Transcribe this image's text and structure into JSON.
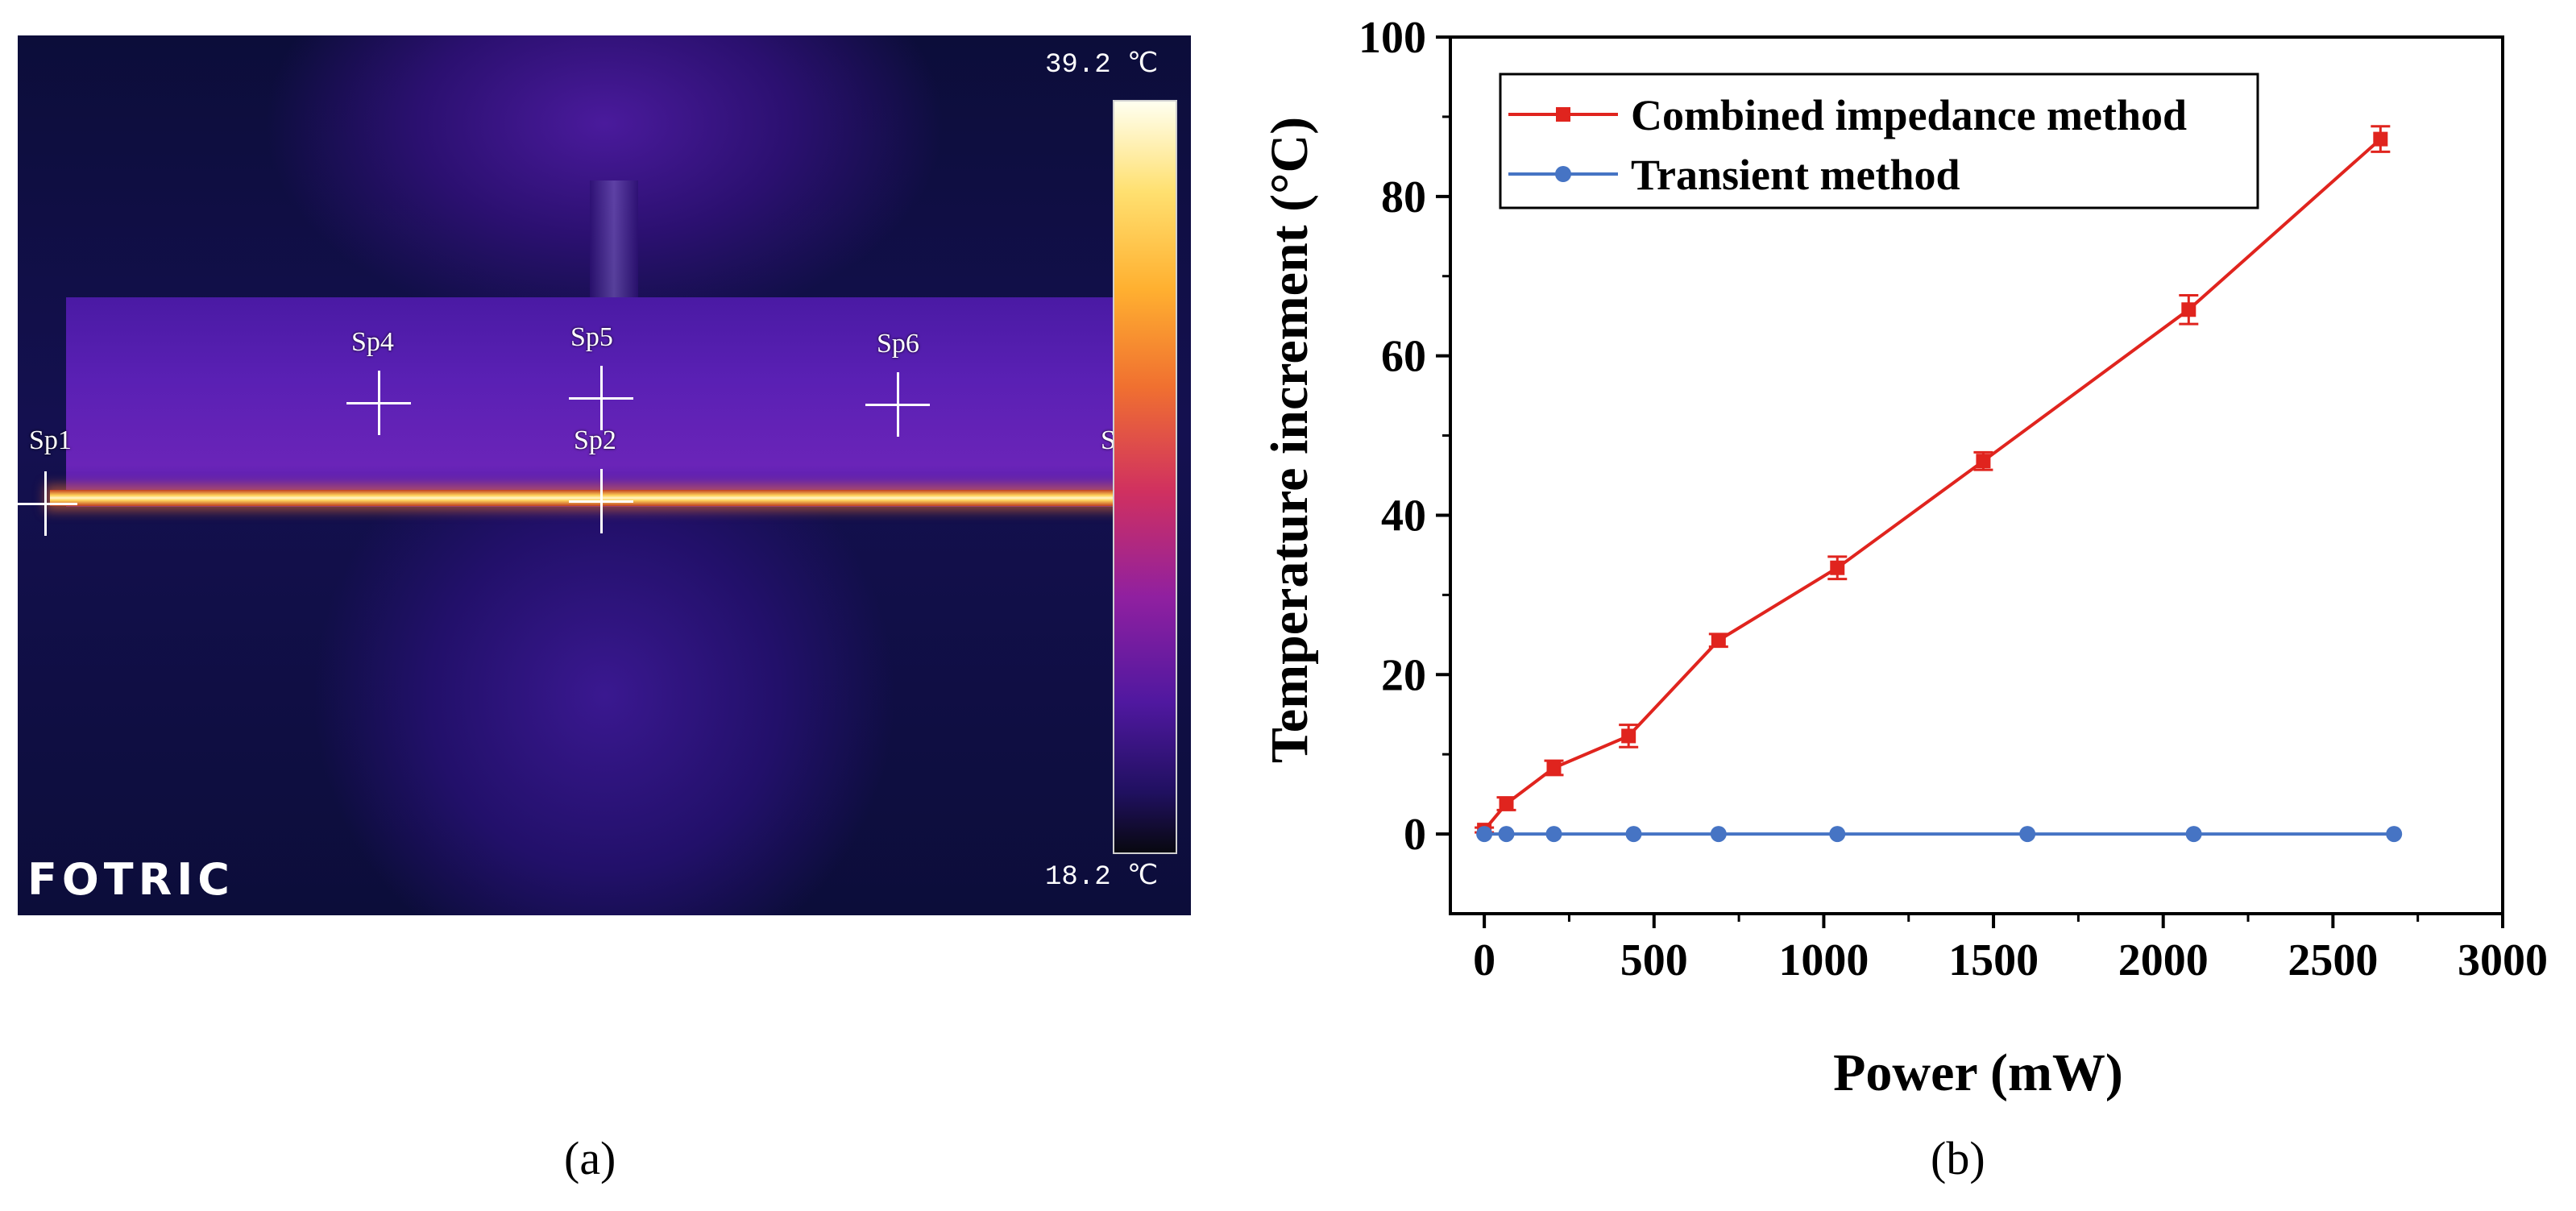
{
  "panel_a": {
    "caption": "(a)",
    "scale_max": "39.2 ℃",
    "scale_min": "18.2 ℃",
    "brand": "FOTRIC",
    "spots": [
      "Sp1",
      "Sp2",
      "Sp4",
      "Sp5",
      "Sp6",
      "S"
    ]
  },
  "panel_b": {
    "caption": "(b)"
  },
  "chart_data": {
    "type": "line",
    "title": "",
    "xlabel": "Power (mW)",
    "ylabel": "Temperature increment (°C)",
    "xlim": [
      -100,
      3000
    ],
    "ylim": [
      -10,
      100
    ],
    "xticks": [
      0,
      500,
      1000,
      1500,
      2000,
      2500,
      3000
    ],
    "yticks": [
      0,
      20,
      40,
      60,
      80,
      100
    ],
    "grid": false,
    "legend_position": "top-left",
    "series": [
      {
        "name": "Combined impedance method",
        "color": "#e0241e",
        "marker": "square",
        "x": [
          0,
          65,
          205,
          425,
          690,
          1040,
          1470,
          2075,
          2640
        ],
        "y": [
          0.5,
          3.8,
          8.3,
          12.3,
          24.3,
          33.4,
          46.8,
          65.8,
          87.2
        ],
        "error": [
          0.3,
          0.8,
          0.9,
          1.4,
          0.8,
          1.4,
          1.1,
          1.8,
          1.6
        ]
      },
      {
        "name": "Transient method",
        "color": "#4674c4",
        "marker": "circle",
        "x": [
          0,
          65,
          205,
          440,
          690,
          1040,
          1600,
          2090,
          2680
        ],
        "y": [
          0,
          0,
          0,
          0,
          0,
          0,
          0,
          0,
          0
        ]
      }
    ]
  }
}
